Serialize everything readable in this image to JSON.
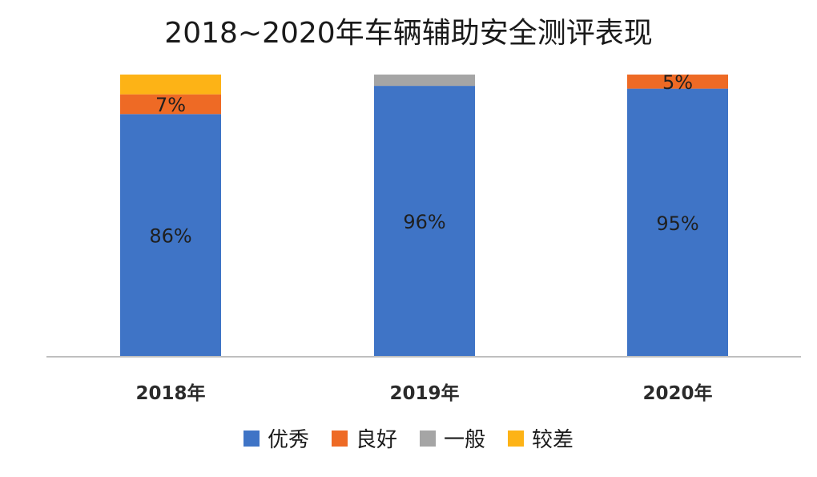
{
  "chart_data": {
    "type": "bar",
    "stacked": true,
    "title": "2018~2020年车辆辅助安全测评表现",
    "xlabel": "",
    "ylabel": "",
    "ylim": [
      0,
      100
    ],
    "grid": false,
    "legend_position": "bottom",
    "categories": [
      "2018年",
      "2019年",
      "2020年"
    ],
    "series": [
      {
        "name": "优秀",
        "color": "#3F74C6",
        "values": [
          86,
          96,
          95
        ],
        "labels": [
          "86%",
          "96%",
          "95%"
        ]
      },
      {
        "name": "良好",
        "color": "#EE6A25",
        "values": [
          7,
          0,
          5
        ],
        "labels": [
          "7%",
          "",
          "5%"
        ]
      },
      {
        "name": "一般",
        "color": "#A5A5A5",
        "values": [
          0,
          4,
          0
        ],
        "labels": [
          "",
          "",
          ""
        ]
      },
      {
        "name": "较差",
        "color": "#FDB316",
        "values": [
          7,
          0,
          0
        ],
        "labels": [
          "",
          "",
          ""
        ]
      }
    ]
  }
}
